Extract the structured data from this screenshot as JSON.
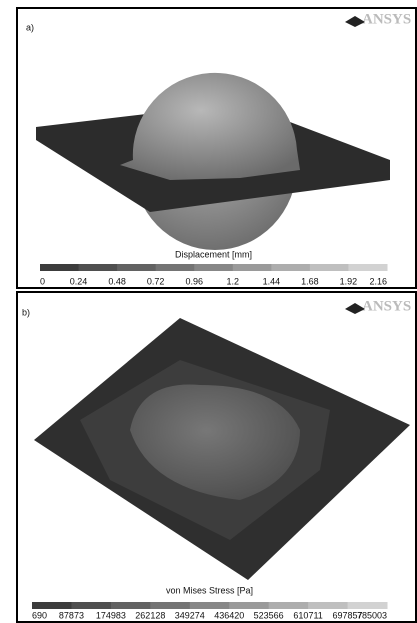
{
  "panels": [
    {
      "label": "a)",
      "logo": "ANSYS",
      "colorbar": {
        "title": "Displacement [mm]",
        "ticks": [
          0,
          0.24,
          0.48,
          0.72,
          0.96,
          1.2,
          1.44,
          1.68,
          1.92,
          2.16
        ]
      }
    },
    {
      "label": "b)",
      "logo": "ANSYS",
      "colorbar": {
        "title": "von Mises Stress [Pa]",
        "ticks": [
          690,
          87873,
          174983,
          262128,
          349274,
          436420,
          523566,
          610711,
          697857,
          785003
        ]
      }
    }
  ]
}
